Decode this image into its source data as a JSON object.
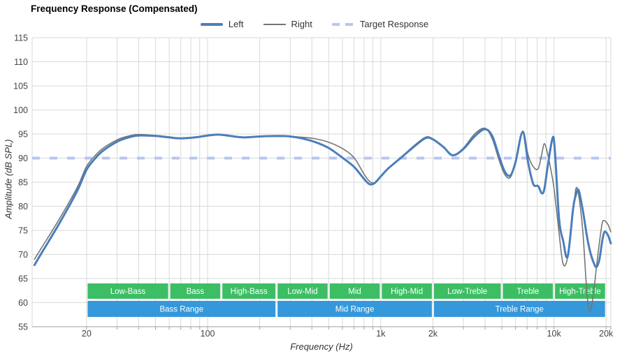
{
  "title": "Frequency Response (Compensated)",
  "legend": {
    "items": [
      {
        "label": "Left",
        "style": "solid-thick",
        "color": "#4a7ebb"
      },
      {
        "label": "Right",
        "style": "solid-thin",
        "color": "#757575"
      },
      {
        "label": "Target Response",
        "style": "dashed",
        "color": "#b9c5f1"
      }
    ]
  },
  "axes": {
    "x": {
      "title": "Frequency (Hz)",
      "scale": "log",
      "ticks": [
        {
          "f": 20,
          "label": "20"
        },
        {
          "f": 100,
          "label": "100"
        },
        {
          "f": 1000,
          "label": "1k"
        },
        {
          "f": 2000,
          "label": "2k"
        },
        {
          "f": 10000,
          "label": "10k"
        },
        {
          "f": 20000,
          "label": "20k"
        }
      ]
    },
    "y": {
      "title": "Amplitude (dB SPL)",
      "min": 55,
      "max": 115,
      "step": 5,
      "tick_labels": [
        "115",
        "110",
        "105",
        "100",
        "95",
        "90",
        "85",
        "80",
        "75",
        "70",
        "65",
        "60",
        "55"
      ]
    }
  },
  "bands": {
    "sub_color": "#3cbe64",
    "range_color": "#3498db",
    "sub": [
      {
        "label": "Low-Bass",
        "from": 20,
        "to": 60
      },
      {
        "label": "Bass",
        "from": 60,
        "to": 120
      },
      {
        "label": "High-Bass",
        "from": 120,
        "to": 250
      },
      {
        "label": "Low-Mid",
        "from": 250,
        "to": 500
      },
      {
        "label": "Mid",
        "from": 500,
        "to": 1000
      },
      {
        "label": "High-Mid",
        "from": 1000,
        "to": 2000
      },
      {
        "label": "Low-Treble",
        "from": 2000,
        "to": 5000
      },
      {
        "label": "Treble",
        "from": 5000,
        "to": 10000
      },
      {
        "label": "High-Treble",
        "from": 10000,
        "to": 20000
      }
    ],
    "ranges": [
      {
        "label": "Bass Range",
        "from": 20,
        "to": 250
      },
      {
        "label": "Mid Range",
        "from": 250,
        "to": 2000
      },
      {
        "label": "Treble Range",
        "from": 2000,
        "to": 20000
      }
    ]
  },
  "colors": {
    "grid": "#d9d9d9",
    "axis_line": "#9e9e9e",
    "tick_text": "#444444",
    "target": "#b9c5f1"
  },
  "chart_data": {
    "type": "line",
    "title": "Frequency Response (Compensated)",
    "xlabel": "Frequency (Hz)",
    "ylabel": "Amplitude (dB SPL)",
    "x_scale": "log",
    "xlim": [
      9.7,
      21300
    ],
    "ylim": [
      55,
      115
    ],
    "grid": true,
    "legend_position": "top",
    "target_response_db": 90,
    "frequencies_hz": [
      10,
      11,
      12.5,
      14,
      16,
      18,
      20,
      22.5,
      25,
      30,
      35,
      40,
      50,
      60,
      70,
      85,
      100,
      115,
      130,
      160,
      200,
      250,
      300,
      360,
      420,
      500,
      600,
      700,
      800,
      860,
      920,
      1000,
      1100,
      1300,
      1500,
      1800,
      2000,
      2300,
      2600,
      3000,
      3500,
      4000,
      4400,
      4800,
      5200,
      5600,
      6000,
      6600,
      7100,
      7600,
      8100,
      8500,
      8800,
      9200,
      9800,
      10100,
      10700,
      11300,
      12000,
      12900,
      13400,
      13900,
      14700,
      15500,
      16200,
      17000,
      17600,
      18300,
      19000,
      19600,
      20500,
      21300
    ],
    "series": [
      {
        "name": "Left",
        "color": "#4a7ebb",
        "stroke_width": 3,
        "values_db": [
          67.8,
          70.3,
          73.6,
          76.6,
          80.3,
          83.8,
          87.6,
          90.0,
          91.6,
          93.4,
          94.3,
          94.7,
          94.6,
          94.3,
          94.1,
          94.3,
          94.7,
          94.9,
          94.7,
          94.3,
          94.5,
          94.6,
          94.5,
          94.0,
          93.3,
          92.1,
          90.1,
          88.2,
          85.7,
          84.6,
          84.8,
          86.2,
          87.8,
          90.0,
          91.9,
          94.1,
          93.9,
          92.3,
          90.6,
          91.9,
          94.6,
          96.0,
          94.6,
          90.6,
          87.2,
          86.4,
          89.2,
          95.4,
          89.0,
          84.6,
          84.2,
          82.7,
          83.6,
          88.3,
          94.1,
          92.0,
          77.5,
          72.8,
          69.6,
          79.5,
          82.4,
          83.3,
          79.0,
          73.8,
          70.5,
          68.2,
          67.4,
          69.0,
          72.8,
          74.7,
          74.0,
          72.3
        ]
      },
      {
        "name": "Right",
        "color": "#757575",
        "stroke_width": 1.6,
        "values_db": [
          69.0,
          71.4,
          74.6,
          77.5,
          81.1,
          84.5,
          88.3,
          90.6,
          92.1,
          93.8,
          94.6,
          94.9,
          94.7,
          94.4,
          94.1,
          94.3,
          94.6,
          94.8,
          94.6,
          94.3,
          94.5,
          94.5,
          94.5,
          94.3,
          94.0,
          93.3,
          92.0,
          90.1,
          86.7,
          85.2,
          84.9,
          86.2,
          87.8,
          90.0,
          92.1,
          94.3,
          94.0,
          92.3,
          90.5,
          92.1,
          95.1,
          96.2,
          94.0,
          89.8,
          86.6,
          86.0,
          89.3,
          95.6,
          90.6,
          88.2,
          87.8,
          90.8,
          93.0,
          90.8,
          85.8,
          82.6,
          74.5,
          68.0,
          69.5,
          78.8,
          83.7,
          82.2,
          74.5,
          62.0,
          58.2,
          62.5,
          67.5,
          72.5,
          76.5,
          77.0,
          76.2,
          74.7
        ]
      }
    ]
  }
}
